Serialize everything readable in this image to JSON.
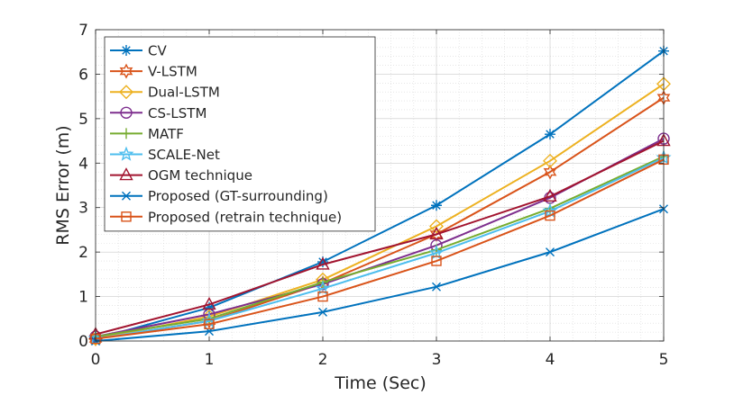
{
  "chart_data": {
    "type": "line",
    "title": "",
    "xlabel": "Time (Sec)",
    "ylabel": "RMS Error (m)",
    "xlim": [
      0,
      5
    ],
    "ylim": [
      0,
      7
    ],
    "x_ticks": [
      "0",
      "1",
      "2",
      "3",
      "4",
      "5"
    ],
    "y_ticks": [
      "0",
      "1",
      "2",
      "3",
      "4",
      "5",
      "6",
      "7"
    ],
    "grid": true,
    "minor_grid": true,
    "legend_position": "top-left",
    "x": [
      0,
      1,
      2,
      3,
      4,
      5
    ],
    "series": [
      {
        "name": "CV",
        "values": [
          0.05,
          0.75,
          1.78,
          3.05,
          4.65,
          6.52
        ],
        "color": "#0072BD",
        "marker": "asterisk"
      },
      {
        "name": "V-LSTM",
        "values": [
          0.05,
          0.45,
          1.3,
          2.4,
          3.8,
          5.47
        ],
        "color": "#D95319",
        "marker": "hexagram"
      },
      {
        "name": "Dual-LSTM",
        "values": [
          0.05,
          0.55,
          1.38,
          2.58,
          4.05,
          5.78
        ],
        "color": "#EDB120",
        "marker": "diamond"
      },
      {
        "name": "CS-LSTM",
        "values": [
          0.1,
          0.6,
          1.28,
          2.15,
          3.22,
          4.55
        ],
        "color": "#7E2F8E",
        "marker": "circle"
      },
      {
        "name": "MATF",
        "values": [
          0.1,
          0.5,
          1.32,
          2.05,
          2.98,
          4.15
        ],
        "color": "#77AC30",
        "marker": "plus"
      },
      {
        "name": "SCALE-Net",
        "values": [
          0.05,
          0.45,
          1.18,
          1.98,
          2.92,
          4.12
        ],
        "color": "#4DBEEE",
        "marker": "pentagram"
      },
      {
        "name": "OGM technique",
        "values": [
          0.15,
          0.82,
          1.72,
          2.4,
          3.25,
          4.5
        ],
        "color": "#A2142F",
        "marker": "triangle"
      },
      {
        "name": "Proposed (GT-surrounding)",
        "values": [
          0.0,
          0.22,
          0.65,
          1.22,
          2.0,
          2.97
        ],
        "color": "#0072BD",
        "marker": "x"
      },
      {
        "name": "Proposed (retrain technique)",
        "values": [
          0.05,
          0.38,
          1.0,
          1.8,
          2.82,
          4.08
        ],
        "color": "#D95319",
        "marker": "square"
      }
    ]
  }
}
